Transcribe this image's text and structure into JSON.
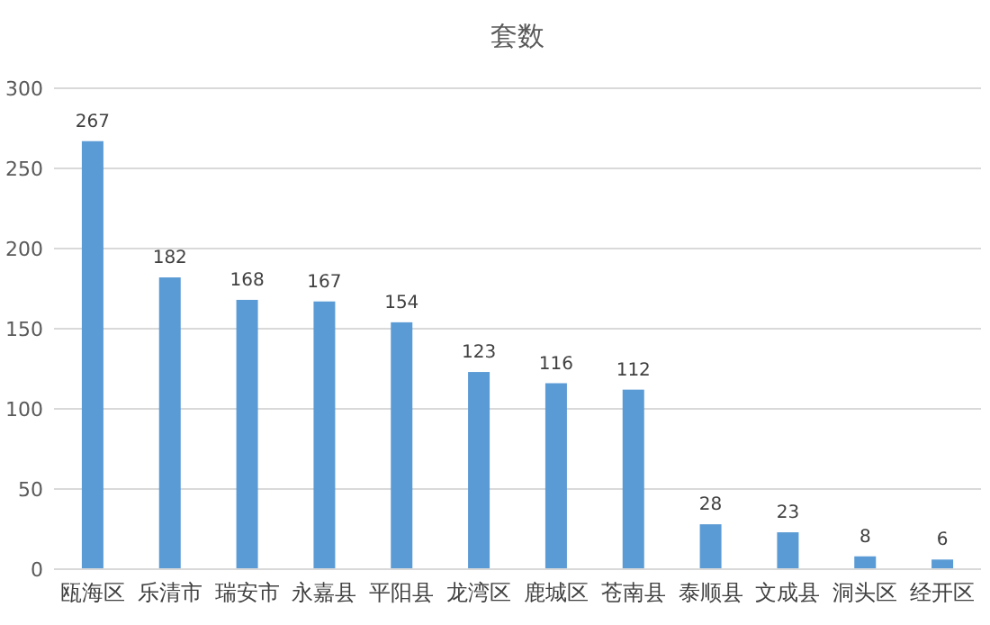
{
  "chart_data": {
    "type": "bar",
    "title": "套数",
    "categories": [
      "瓯海区",
      "乐清市",
      "瑞安市",
      "永嘉县",
      "平阳县",
      "龙湾区",
      "鹿城区",
      "苍南县",
      "泰顺县",
      "文成县",
      "洞头区",
      "经开区"
    ],
    "values": [
      267,
      182,
      168,
      167,
      154,
      123,
      116,
      112,
      28,
      23,
      8,
      6
    ],
    "color": "#5b9bd5",
    "ylim": [
      0,
      300
    ],
    "yticks": [
      0,
      50,
      100,
      150,
      200,
      250,
      300
    ],
    "grid": "y",
    "data_labels": true
  }
}
